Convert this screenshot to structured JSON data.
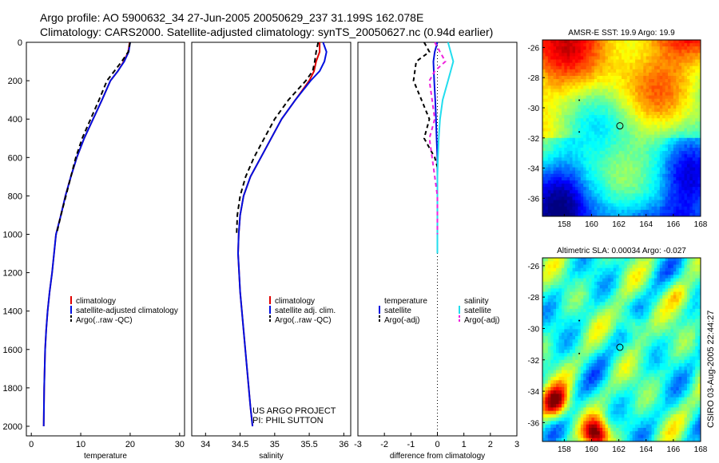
{
  "header": {
    "line1": "Argo profile: AO 5900632_34 27-Jun-2005 20050629_237 31.199S 162.078E",
    "line2": "Climatology: CARS2000. Satellite-adjusted climatology: synTS_20050627.nc (0.94d earlier)"
  },
  "side_text": "CSIRO 03-Aug-2005 22:44:27",
  "project_credit": {
    "line1": "US ARGO PROJECT",
    "line2": "PI: PHIL SUTTON"
  },
  "colors": {
    "climatology": "#e00000",
    "satellite": "#0010e0",
    "argo": "#000000",
    "salinity_sat": "#22ddee",
    "salinity_argo": "#ee22dd",
    "zero_line": "#000000"
  },
  "chart_data": [
    {
      "id": "temperature",
      "type": "line",
      "xlabel": "temperature",
      "ylabel": "",
      "xlim": [
        -1,
        31
      ],
      "ylim": [
        2050,
        0
      ],
      "xticks": [
        0,
        10,
        20,
        30
      ],
      "yticks": [
        0,
        200,
        400,
        600,
        800,
        1000,
        1200,
        1400,
        1600,
        1800,
        2000
      ],
      "legend": [
        "climatology",
        "satellite-adjusted climatology",
        "Argo(..raw -QC)"
      ],
      "legend_position": "lower-right",
      "series": [
        {
          "name": "climatology",
          "color": "#e00000",
          "dash": "",
          "x": [
            19.9,
            19.6,
            18.7,
            17.5,
            16.0,
            14.3,
            12.5,
            10.7,
            9.2,
            8.0,
            6.9,
            6.0,
            5.0,
            4.2,
            3.7,
            3.3,
            3.0,
            2.8,
            2.6,
            2.5
          ],
          "y": [
            0,
            50,
            100,
            150,
            200,
            300,
            400,
            500,
            600,
            700,
            800,
            900,
            1000,
            1200,
            1300,
            1400,
            1500,
            1600,
            1800,
            2000
          ]
        },
        {
          "name": "satellite-adjusted climatology",
          "color": "#0010e0",
          "dash": "",
          "x": [
            20.0,
            19.7,
            18.8,
            17.5,
            16.0,
            14.3,
            12.5,
            10.7,
            9.2,
            8.0,
            6.9,
            6.0,
            5.0,
            4.2,
            3.7,
            3.3,
            3.0,
            2.8,
            2.6,
            2.5
          ],
          "y": [
            0,
            50,
            100,
            150,
            200,
            300,
            400,
            500,
            600,
            700,
            800,
            900,
            1000,
            1200,
            1300,
            1400,
            1500,
            1600,
            1800,
            2000
          ]
        },
        {
          "name": "Argo(..raw -QC)",
          "color": "#000000",
          "dash": "6,4",
          "x": [
            20.0,
            19.6,
            18.3,
            16.8,
            15.3,
            13.7,
            12.0,
            10.3,
            9.0,
            8.0,
            7.0,
            6.0,
            5.1
          ],
          "y": [
            0,
            50,
            100,
            150,
            200,
            300,
            400,
            500,
            600,
            700,
            800,
            900,
            1000
          ]
        }
      ]
    },
    {
      "id": "salinity",
      "type": "line",
      "xlabel": "salinity",
      "ylabel": "",
      "xlim": [
        33.8,
        36.1
      ],
      "ylim": [
        2050,
        0
      ],
      "xticks": [
        34,
        34.5,
        35,
        35.5,
        36
      ],
      "xticklabels": [
        "34",
        "34.5",
        "35",
        "35.5",
        "36"
      ],
      "legend": [
        "climatology",
        "satellite adj. clim.",
        "Argo(..raw -QC)"
      ],
      "legend_position": "lower-right",
      "series": [
        {
          "name": "climatology",
          "color": "#e00000",
          "dash": "",
          "x": [
            35.65,
            35.65,
            35.6,
            35.57,
            35.5,
            35.3,
            35.1,
            34.95,
            34.8,
            34.65,
            34.55,
            34.5,
            34.48,
            34.47,
            34.5,
            34.55,
            34.6,
            34.65,
            34.68
          ],
          "y": [
            0,
            50,
            100,
            150,
            200,
            300,
            400,
            500,
            600,
            700,
            800,
            900,
            1000,
            1100,
            1300,
            1500,
            1700,
            1900,
            2000
          ]
        },
        {
          "name": "satellite adj. clim.",
          "color": "#0010e0",
          "dash": "",
          "x": [
            35.7,
            35.75,
            35.72,
            35.65,
            35.52,
            35.3,
            35.1,
            34.95,
            34.8,
            34.65,
            34.55,
            34.5,
            34.48,
            34.47,
            34.5,
            34.55,
            34.6,
            34.65,
            34.68
          ],
          "y": [
            0,
            50,
            100,
            150,
            200,
            300,
            400,
            500,
            600,
            700,
            800,
            900,
            1000,
            1100,
            1300,
            1500,
            1700,
            1900,
            2000
          ]
        },
        {
          "name": "Argo(..raw -QC)",
          "color": "#000000",
          "dash": "6,4",
          "x": [
            35.63,
            35.6,
            35.58,
            35.55,
            35.45,
            35.2,
            35.0,
            34.85,
            34.7,
            34.58,
            34.5,
            34.46,
            34.45
          ],
          "y": [
            0,
            50,
            100,
            150,
            200,
            300,
            400,
            500,
            600,
            700,
            800,
            900,
            1000
          ]
        }
      ]
    },
    {
      "id": "difference",
      "type": "line",
      "xlabel": "difference from climatology",
      "ylabel": "",
      "xlim": [
        -3,
        3
      ],
      "ylim": [
        2050,
        0
      ],
      "xticks": [
        -3,
        -2,
        -1,
        0,
        1,
        2,
        3
      ],
      "legend_left": [
        "temperature",
        "satellite",
        "Argo(-adj)"
      ],
      "legend_right": [
        "salinity",
        "satellite",
        "Argo(-adj)"
      ],
      "legend_position": "lower-center",
      "series": [
        {
          "name": "temperature satellite",
          "color": "#0010e0",
          "dash": "",
          "x": [
            0.0,
            -0.1,
            -0.15,
            -0.12,
            -0.08,
            -0.05,
            -0.03,
            0.0,
            0.0,
            0.0,
            0.0,
            0.0
          ],
          "y": [
            0,
            50,
            100,
            200,
            300,
            400,
            500,
            600,
            700,
            800,
            900,
            1100
          ]
        },
        {
          "name": "temperature Argo(-adj)",
          "color": "#000000",
          "dash": "5,4",
          "x": [
            -0.5,
            -0.3,
            -0.8,
            -0.9,
            -0.6,
            -0.3,
            -0.5,
            -0.3,
            -0.1,
            0.0
          ],
          "y": [
            0,
            50,
            100,
            200,
            300,
            400,
            500,
            550,
            600,
            650
          ]
        },
        {
          "name": "salinity satellite",
          "color": "#22ddee",
          "dash": "",
          "x": [
            0.4,
            0.5,
            0.6,
            0.5,
            0.4,
            0.2,
            0.1,
            0.05,
            0.02,
            0.0,
            0.0,
            0.0,
            0.0
          ],
          "y": [
            0,
            50,
            100,
            150,
            200,
            300,
            400,
            500,
            600,
            700,
            800,
            900,
            1100
          ]
        },
        {
          "name": "salinity Argo(-adj)",
          "color": "#ee22dd",
          "dash": "5,4",
          "x": [
            -0.1,
            0.1,
            0.3,
            -0.1,
            -0.3,
            -0.2,
            -0.1,
            -0.3,
            -0.2,
            -0.1,
            0.0,
            0.0,
            0.0
          ],
          "y": [
            0,
            50,
            100,
            150,
            200,
            300,
            400,
            500,
            600,
            700,
            800,
            900,
            1000
          ]
        }
      ]
    },
    {
      "id": "sst-map",
      "type": "heatmap",
      "title": "AMSR-E SST: 19.9 Argo: 19.9",
      "xlim": [
        156.4,
        168
      ],
      "ylim": [
        -37.2,
        -25.5
      ],
      "xticks": [
        158,
        160,
        162,
        164,
        166,
        168
      ],
      "yticks": [
        -26,
        -28,
        -30,
        -32,
        -34,
        -36
      ],
      "colormap": "jet",
      "marker": {
        "lon": 162.078,
        "lat": -31.199
      }
    },
    {
      "id": "sla-map",
      "type": "heatmap",
      "title": "Altimetric SLA: 0.00034 Argo: -0.027",
      "xlim": [
        156.4,
        168
      ],
      "ylim": [
        -37.2,
        -25.5
      ],
      "xticks": [
        158,
        160,
        162,
        164,
        166,
        168
      ],
      "yticks": [
        -26,
        -28,
        -30,
        -32,
        -34,
        -36
      ],
      "colormap": "jet",
      "marker": {
        "lon": 162.078,
        "lat": -31.199
      }
    }
  ]
}
